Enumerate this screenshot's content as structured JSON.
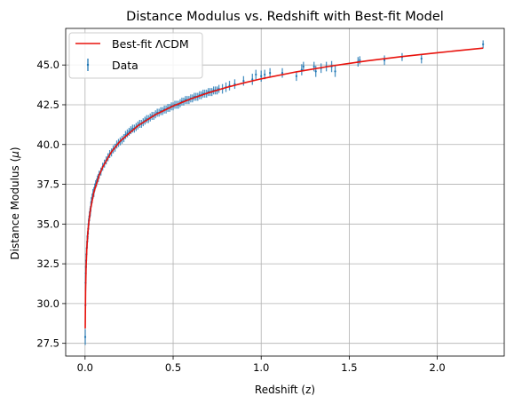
{
  "chart_data": {
    "type": "scatter",
    "title": "Distance Modulus vs. Redshift with Best-fit Model",
    "xlabel": "Redshift (z)",
    "ylabel_prefix": "Distance Modulus (",
    "ylabel_symbol": "μ",
    "ylabel_suffix": ")",
    "xlim": [
      -0.11,
      2.38
    ],
    "ylim": [
      26.7,
      47.3
    ],
    "xticks": [
      0.0,
      0.5,
      1.0,
      1.5,
      2.0
    ],
    "xtick_labels": [
      "0.0",
      "0.5",
      "1.0",
      "1.5",
      "2.0"
    ],
    "yticks": [
      27.5,
      30.0,
      32.5,
      35.0,
      37.5,
      40.0,
      42.5,
      45.0
    ],
    "ytick_labels": [
      "27.5",
      "30.0",
      "32.5",
      "35.0",
      "37.5",
      "40.0",
      "42.5",
      "45.0"
    ],
    "grid": true,
    "legend": {
      "placement": "top-left"
    },
    "series": [
      {
        "name": "Best-fit ΛCDM",
        "kind": "line",
        "color": "#e8120c",
        "x": [
          0.001,
          0.003,
          0.006,
          0.01,
          0.015,
          0.02,
          0.03,
          0.05,
          0.08,
          0.1,
          0.15,
          0.2,
          0.3,
          0.4,
          0.5,
          0.6,
          0.7,
          0.8,
          0.9,
          1.0,
          1.2,
          1.4,
          1.6,
          1.8,
          2.0,
          2.26
        ],
        "y": [
          28.44,
          30.83,
          32.34,
          33.46,
          34.35,
          34.98,
          35.87,
          37.0,
          38.06,
          38.58,
          39.54,
          40.22,
          41.18,
          41.88,
          42.42,
          42.87,
          43.25,
          43.58,
          43.87,
          44.13,
          44.57,
          44.94,
          45.26,
          45.53,
          45.77,
          46.06
        ]
      },
      {
        "name": "Data",
        "kind": "errorbar",
        "color": "#1f77b4",
        "x": [
          0.001,
          0.002,
          0.003,
          0.004,
          0.005,
          0.006,
          0.008,
          0.01,
          0.012,
          0.014,
          0.016,
          0.018,
          0.02,
          0.022,
          0.025,
          0.028,
          0.03,
          0.033,
          0.036,
          0.04,
          0.045,
          0.05,
          0.055,
          0.06,
          0.065,
          0.07,
          0.075,
          0.08,
          0.09,
          0.1,
          0.11,
          0.12,
          0.13,
          0.14,
          0.15,
          0.16,
          0.17,
          0.18,
          0.19,
          0.2,
          0.21,
          0.22,
          0.23,
          0.24,
          0.25,
          0.26,
          0.27,
          0.28,
          0.29,
          0.3,
          0.31,
          0.32,
          0.33,
          0.34,
          0.35,
          0.36,
          0.37,
          0.38,
          0.39,
          0.4,
          0.41,
          0.42,
          0.43,
          0.44,
          0.45,
          0.46,
          0.47,
          0.48,
          0.49,
          0.5,
          0.51,
          0.52,
          0.53,
          0.54,
          0.55,
          0.56,
          0.57,
          0.58,
          0.59,
          0.6,
          0.61,
          0.62,
          0.63,
          0.64,
          0.65,
          0.66,
          0.67,
          0.68,
          0.69,
          0.7,
          0.71,
          0.72,
          0.73,
          0.74,
          0.75,
          0.76,
          0.78,
          0.8,
          0.82,
          0.85,
          0.9,
          0.95,
          0.97,
          1.0,
          1.02,
          1.05,
          1.12,
          1.2,
          1.23,
          1.24,
          1.3,
          1.31,
          1.34,
          1.37,
          1.4,
          1.42,
          1.55,
          1.56,
          1.7,
          1.8,
          1.91,
          2.26
        ],
        "y": [
          27.9,
          29.9,
          31.3,
          31.9,
          32.3,
          32.7,
          33.1,
          33.5,
          33.9,
          34.2,
          34.4,
          34.7,
          35.0,
          35.2,
          35.5,
          35.7,
          35.8,
          36.1,
          36.4,
          36.6,
          36.9,
          37.0,
          37.3,
          37.5,
          37.6,
          37.8,
          37.9,
          38.1,
          38.3,
          38.6,
          38.8,
          39.0,
          39.2,
          39.4,
          39.5,
          39.7,
          39.8,
          40.0,
          40.1,
          40.2,
          40.3,
          40.4,
          40.6,
          40.7,
          40.8,
          40.9,
          41.0,
          41.0,
          41.1,
          41.2,
          41.3,
          41.3,
          41.4,
          41.5,
          41.6,
          41.6,
          41.7,
          41.8,
          41.8,
          41.9,
          42.0,
          42.0,
          42.1,
          42.1,
          42.2,
          42.2,
          42.3,
          42.3,
          42.4,
          42.4,
          42.5,
          42.5,
          42.5,
          42.6,
          42.7,
          42.7,
          42.8,
          42.8,
          42.8,
          42.9,
          42.9,
          43.0,
          43.0,
          43.0,
          43.1,
          43.1,
          43.2,
          43.2,
          43.2,
          43.3,
          43.3,
          43.3,
          43.4,
          43.4,
          43.4,
          43.5,
          43.5,
          43.6,
          43.7,
          43.8,
          44.0,
          44.1,
          44.4,
          44.3,
          44.4,
          44.5,
          44.5,
          44.3,
          44.7,
          44.9,
          44.9,
          44.6,
          44.8,
          44.9,
          44.9,
          44.6,
          45.2,
          45.3,
          45.3,
          45.5,
          45.4,
          46.3
        ],
        "err": [
          0.5,
          0.5,
          0.5,
          0.45,
          0.45,
          0.45,
          0.4,
          0.4,
          0.4,
          0.35,
          0.35,
          0.35,
          0.35,
          0.3,
          0.3,
          0.3,
          0.3,
          0.3,
          0.3,
          0.3,
          0.3,
          0.3,
          0.25,
          0.25,
          0.25,
          0.25,
          0.25,
          0.25,
          0.25,
          0.25,
          0.25,
          0.25,
          0.25,
          0.25,
          0.25,
          0.25,
          0.25,
          0.25,
          0.25,
          0.25,
          0.25,
          0.25,
          0.25,
          0.25,
          0.25,
          0.25,
          0.25,
          0.25,
          0.25,
          0.25,
          0.25,
          0.25,
          0.25,
          0.25,
          0.25,
          0.25,
          0.25,
          0.25,
          0.25,
          0.25,
          0.25,
          0.25,
          0.25,
          0.25,
          0.25,
          0.25,
          0.25,
          0.25,
          0.25,
          0.25,
          0.25,
          0.25,
          0.25,
          0.25,
          0.25,
          0.25,
          0.25,
          0.25,
          0.25,
          0.25,
          0.25,
          0.25,
          0.25,
          0.25,
          0.25,
          0.25,
          0.25,
          0.25,
          0.25,
          0.25,
          0.25,
          0.25,
          0.25,
          0.25,
          0.25,
          0.25,
          0.3,
          0.3,
          0.3,
          0.3,
          0.3,
          0.35,
          0.3,
          0.35,
          0.3,
          0.3,
          0.3,
          0.3,
          0.35,
          0.3,
          0.3,
          0.35,
          0.3,
          0.3,
          0.35,
          0.35,
          0.3,
          0.25,
          0.3,
          0.25,
          0.3,
          0.25
        ]
      }
    ]
  }
}
